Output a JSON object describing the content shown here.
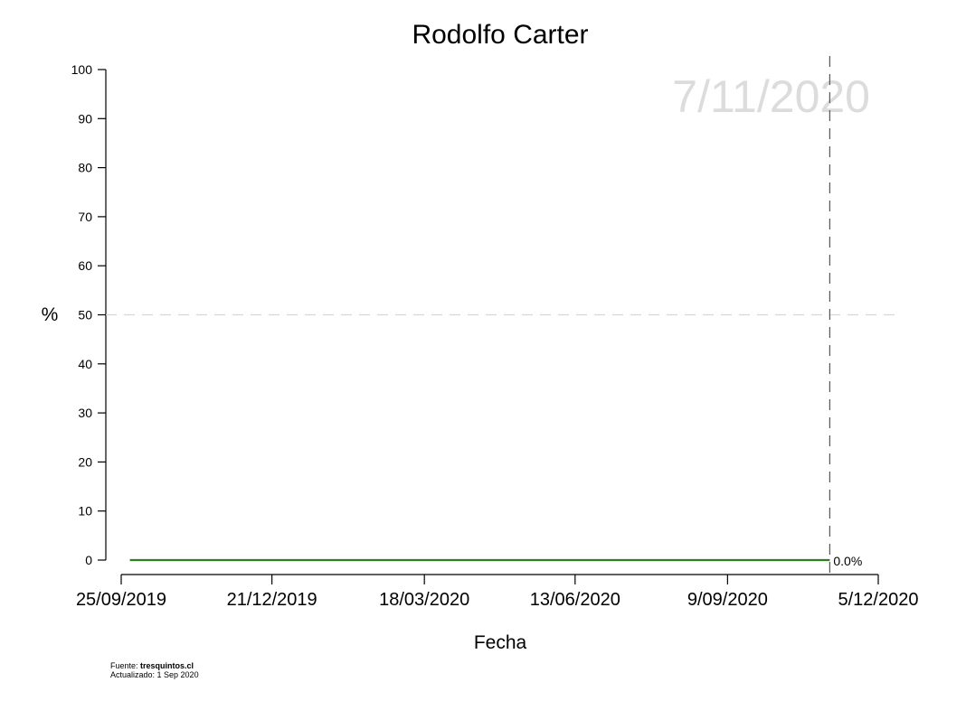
{
  "chart_data": {
    "type": "line",
    "title": "Rodolfo Carter",
    "xlabel": "Fecha",
    "ylabel": "%",
    "ylim": [
      0,
      100
    ],
    "yticks": [
      0,
      10,
      20,
      30,
      40,
      50,
      60,
      70,
      80,
      90,
      100
    ],
    "xlim": [
      "2019-09-25",
      "2020-12-05"
    ],
    "xticks": [
      {
        "date": "2019-09-25",
        "label": "25/09/2019"
      },
      {
        "date": "2019-12-21",
        "label": "21/12/2019"
      },
      {
        "date": "2020-03-18",
        "label": "18/03/2020"
      },
      {
        "date": "2020-06-13",
        "label": "13/06/2020"
      },
      {
        "date": "2020-09-09",
        "label": "9/09/2020"
      },
      {
        "date": "2020-12-05",
        "label": "5/12/2020"
      }
    ],
    "reference_line_y": 50,
    "event": {
      "date": "2020-11-07",
      "label": "7/11/2020"
    },
    "series": [
      {
        "color": "#2e7d1f",
        "x": [
          "2019-09-30",
          "2019-12-21",
          "2020-03-18",
          "2020-06-13",
          "2020-09-09",
          "2020-11-07"
        ],
        "y": [
          0,
          0,
          0,
          0,
          0,
          0
        ]
      }
    ],
    "end_label": "0.0%"
  },
  "footer": {
    "source_prefix": "Fuente: ",
    "source_name": "tresquintos.cl",
    "updated": "Actualizado: 1 Sep 2020"
  }
}
